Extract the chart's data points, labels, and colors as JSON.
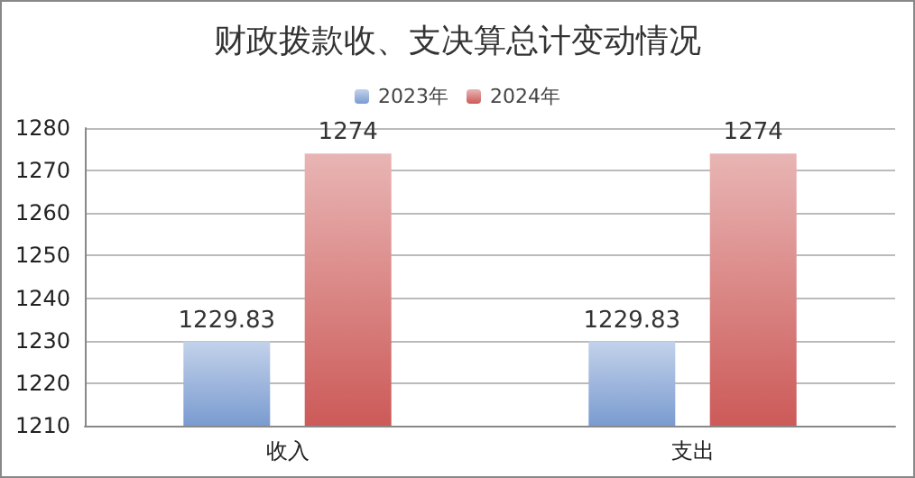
{
  "chart_data": {
    "type": "bar",
    "title": "财政拨款收、支决算总计变动情况",
    "categories": [
      "收入",
      "支出"
    ],
    "series": [
      {
        "name": "2023年",
        "color": "#7a9bd0",
        "values": [
          1229.83,
          1229.83
        ]
      },
      {
        "name": "2024年",
        "color": "#cc5a58",
        "values": [
          1274,
          1274
        ]
      }
    ],
    "ylim": [
      1210,
      1280
    ],
    "yticks": [
      1210,
      1220,
      1230,
      1240,
      1250,
      1260,
      1270,
      1280
    ],
    "grid": "y",
    "legend": "top",
    "data_labels": true
  }
}
